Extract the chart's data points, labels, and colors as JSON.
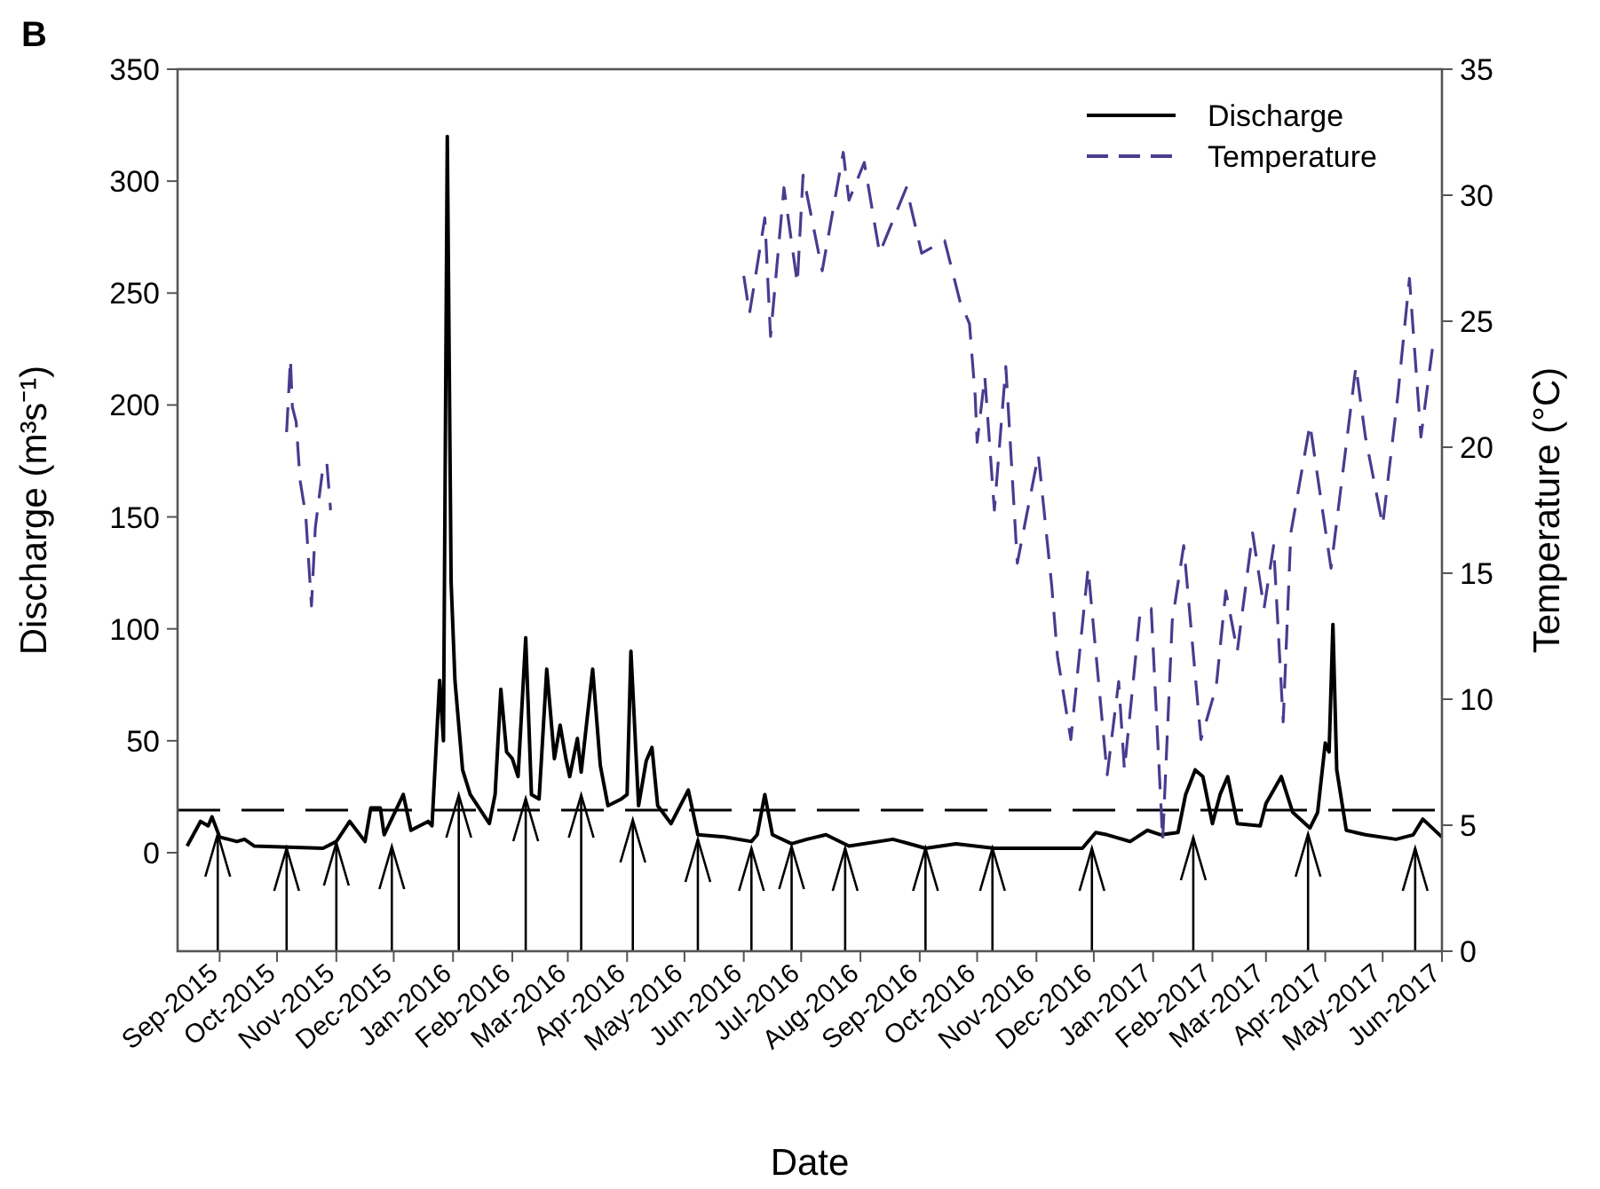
{
  "chart_data": {
    "type": "line",
    "title": "B",
    "xlabel": "Date",
    "ylabel": "Discharge (m³s⁻¹)",
    "y2label": "Temperature (°C)",
    "xlim": [
      "2015-08-10",
      "2017-06-01"
    ],
    "xticks": [
      {
        "value": "2015-09-01",
        "label": "Sep-2015"
      },
      {
        "value": "2015-10-01",
        "label": "Oct-2015"
      },
      {
        "value": "2015-11-01",
        "label": "Nov-2015"
      },
      {
        "value": "2015-12-01",
        "label": "Dec-2015"
      },
      {
        "value": "2016-01-01",
        "label": "Jan-2016"
      },
      {
        "value": "2016-02-01",
        "label": "Feb-2016"
      },
      {
        "value": "2016-03-01",
        "label": "Mar-2016"
      },
      {
        "value": "2016-04-01",
        "label": "Apr-2016"
      },
      {
        "value": "2016-05-01",
        "label": "May-2016"
      },
      {
        "value": "2016-06-01",
        "label": "Jun-2016"
      },
      {
        "value": "2016-07-01",
        "label": "Jul-2016"
      },
      {
        "value": "2016-08-01",
        "label": "Aug-2016"
      },
      {
        "value": "2016-09-01",
        "label": "Sep-2016"
      },
      {
        "value": "2016-10-01",
        "label": "Oct-2016"
      },
      {
        "value": "2016-11-01",
        "label": "Nov-2016"
      },
      {
        "value": "2016-12-01",
        "label": "Dec-2016"
      },
      {
        "value": "2017-01-01",
        "label": "Jan-2017"
      },
      {
        "value": "2017-02-01",
        "label": "Feb-2017"
      },
      {
        "value": "2017-03-01",
        "label": "Mar-2017"
      },
      {
        "value": "2017-04-01",
        "label": "Apr-2017"
      },
      {
        "value": "2017-05-01",
        "label": "May-2017"
      },
      {
        "value": "2017-06-01",
        "label": "Jun-2017"
      }
    ],
    "ylim": [
      -44,
      350
    ],
    "yticks": [
      0,
      50,
      100,
      150,
      200,
      250,
      300,
      350
    ],
    "y2lim": [
      0,
      35
    ],
    "y2ticks": [
      0,
      5,
      10,
      15,
      20,
      25,
      30,
      35
    ],
    "legend": "top right",
    "series": [
      {
        "name": "Discharge",
        "color": "#000000",
        "line_style": "solid",
        "x": [
          "2015-08-15",
          "2015-08-22",
          "2015-08-26",
          "2015-08-28",
          "2015-09-01",
          "2015-09-10",
          "2015-09-14",
          "2015-09-19",
          "2015-10-25",
          "2015-11-01",
          "2015-11-08",
          "2015-11-16",
          "2015-11-19",
          "2015-11-24",
          "2015-11-26",
          "2015-12-06",
          "2015-12-10",
          "2015-12-19",
          "2015-12-21",
          "2015-12-25",
          "2015-12-27",
          "2015-12-29",
          "2015-12-31",
          "2016-01-02",
          "2016-01-06",
          "2016-01-10",
          "2016-01-20",
          "2016-01-23",
          "2016-01-26",
          "2016-01-29",
          "2016-02-01",
          "2016-02-04",
          "2016-02-08",
          "2016-02-11",
          "2016-02-15",
          "2016-02-19",
          "2016-02-23",
          "2016-02-26",
          "2016-02-29",
          "2016-03-02",
          "2016-03-06",
          "2016-03-08",
          "2016-03-14",
          "2016-03-18",
          "2016-03-22",
          "2016-03-29",
          "2016-04-01",
          "2016-04-03",
          "2016-04-07",
          "2016-04-11",
          "2016-04-14",
          "2016-04-17",
          "2016-04-24",
          "2016-05-03",
          "2016-05-08",
          "2016-05-22",
          "2016-06-05",
          "2016-06-08",
          "2016-06-12",
          "2016-06-16",
          "2016-06-26",
          "2016-07-04",
          "2016-07-14",
          "2016-07-26",
          "2016-08-18",
          "2016-09-04",
          "2016-09-20",
          "2016-10-10",
          "2016-11-25",
          "2016-12-02",
          "2016-12-08",
          "2016-12-20",
          "2016-12-29",
          "2017-01-05",
          "2017-01-14",
          "2017-01-18",
          "2017-01-23",
          "2017-01-27",
          "2017-02-01",
          "2017-02-05",
          "2017-02-09",
          "2017-02-14",
          "2017-02-26",
          "2017-03-01",
          "2017-03-09",
          "2017-03-15",
          "2017-03-24",
          "2017-03-28",
          "2017-04-01",
          "2017-04-03",
          "2017-04-05",
          "2017-04-07",
          "2017-04-12",
          "2017-04-22",
          "2017-05-08",
          "2017-05-17",
          "2017-05-22",
          "2017-06-01"
        ],
        "values": [
          3,
          14,
          12,
          16,
          7,
          5,
          6,
          3,
          2,
          5,
          14,
          5,
          20,
          20,
          8,
          26,
          10,
          14,
          12,
          77,
          50,
          320,
          121,
          77,
          37,
          26,
          13,
          26,
          73,
          45,
          42,
          34,
          96,
          26,
          24,
          82,
          42,
          57,
          42,
          34,
          51,
          36,
          82,
          39,
          21,
          24,
          26,
          90,
          21,
          41,
          47,
          21,
          13,
          28,
          8,
          7,
          5,
          8,
          26,
          8,
          4,
          6,
          8,
          3,
          6,
          2,
          4,
          2,
          2,
          9,
          8,
          5,
          10,
          8,
          9,
          26,
          37,
          34,
          13,
          26,
          34,
          13,
          12,
          22,
          34,
          18,
          11,
          18,
          49,
          45,
          102,
          37,
          10,
          8,
          6,
          8,
          15,
          7
        ]
      },
      {
        "name": "Temperature",
        "color": "#4b3a8f",
        "line_style": "dashed",
        "axis": "y2",
        "x": [
          "2015-10-06",
          "2015-10-08",
          "2015-10-09",
          "2015-10-11",
          "2015-10-13",
          "2015-10-16",
          "2015-10-19",
          "2015-10-21",
          "2015-10-25",
          "2015-10-27",
          "2015-10-29",
          "2016-03-01",
          "2016-06-01",
          "2016-06-04",
          "2016-06-12",
          "2016-06-15",
          "2016-06-22",
          "2016-06-29",
          "2016-07-02",
          "2016-07-12",
          "2016-07-23",
          "2016-07-26",
          "2016-08-03",
          "2016-08-11",
          "2016-08-25",
          "2016-09-02",
          "2016-09-14",
          "2016-09-22",
          "2016-09-27",
          "2016-09-30",
          "2016-10-01",
          "2016-10-05",
          "2016-10-10",
          "2016-10-16",
          "2016-10-22",
          "2016-11-02",
          "2016-11-09",
          "2016-11-12",
          "2016-11-19",
          "2016-11-28",
          "2016-12-02",
          "2016-12-08",
          "2016-12-14",
          "2016-12-17",
          "2016-12-25",
          "2016-12-31",
          "2017-01-06",
          "2017-01-11",
          "2017-01-17",
          "2017-01-26",
          "2017-02-03",
          "2017-02-08",
          "2017-02-14",
          "2017-02-22",
          "2017-02-28",
          "2017-03-05",
          "2017-03-10",
          "2017-03-14",
          "2017-03-24",
          "2017-04-04",
          "2017-04-17",
          "2017-04-22",
          "2017-05-01",
          "2017-05-09",
          "2017-05-15",
          "2017-05-21",
          "2017-05-27"
        ],
        "values": [
          20.6,
          23.5,
          21.6,
          21,
          18.7,
          17.3,
          13.7,
          16.8,
          19.2,
          19.4,
          17.5,
          null,
          26.8,
          25.3,
          29.1,
          24.4,
          30.3,
          26.5,
          30.8,
          27,
          31.7,
          29.8,
          31.3,
          27.7,
          30.3,
          27.7,
          28.2,
          25.8,
          24.9,
          22,
          20.2,
          22.8,
          17.5,
          23.2,
          15.4,
          19.7,
          14.5,
          11.7,
          8.4,
          15.2,
          11.9,
          7,
          10.7,
          7.2,
          13.3,
          13.6,
          4.4,
          13.1,
          16.1,
          8.4,
          10.5,
          14.3,
          11.9,
          16.6,
          13.6,
          16.1,
          9.1,
          16.6,
          20.9,
          15.2,
          23.2,
          20.4,
          16.9,
          22.1,
          26.7,
          20.4,
          23.9
        ]
      }
    ],
    "ref_lines": [
      {
        "axis": "y",
        "value": 19,
        "color": "#000000",
        "line_style": "dashed"
      }
    ]
  }
}
